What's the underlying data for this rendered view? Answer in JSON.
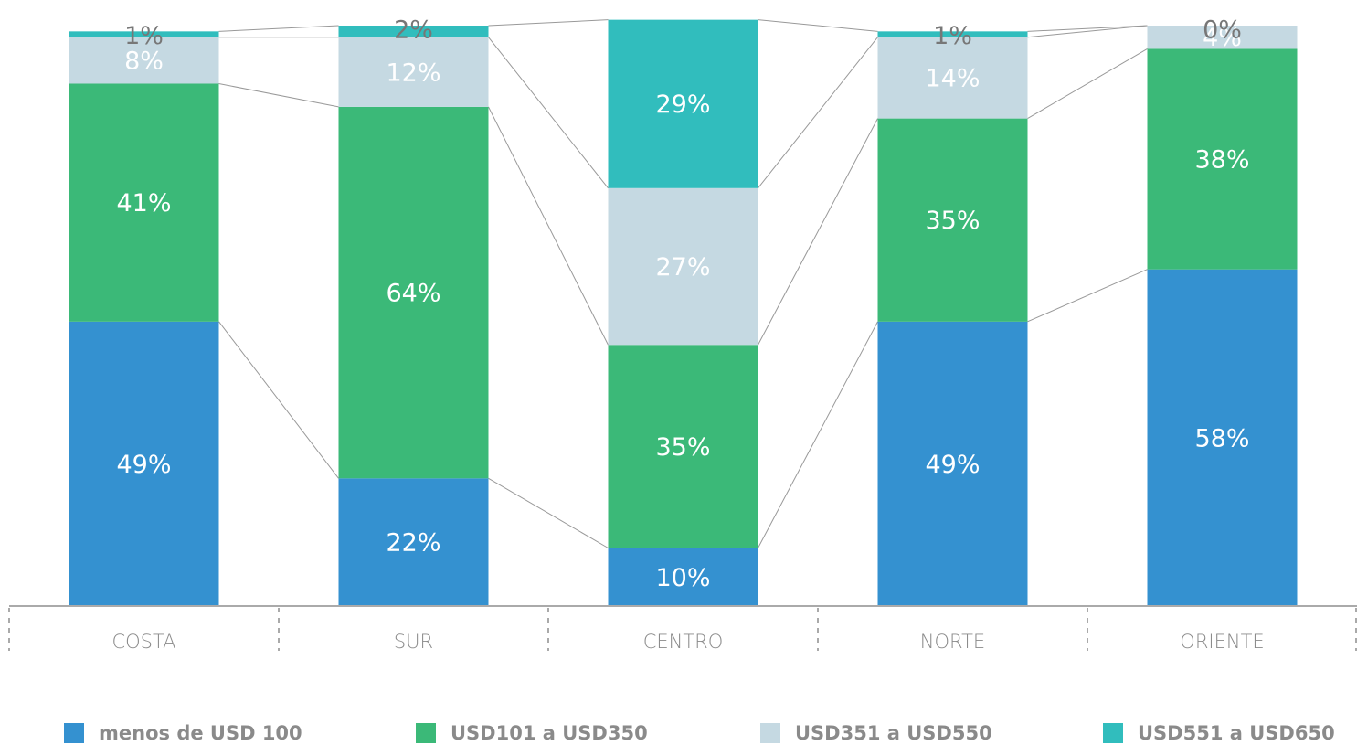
{
  "chart_data": {
    "type": "stacked_bar",
    "categories": [
      "COSTA",
      "SUR",
      "CENTRO",
      "NORTE",
      "ORIENTE"
    ],
    "ylim": [
      0,
      100
    ],
    "series": [
      {
        "name": "menos de USD 100",
        "color": "#3491d0",
        "values": [
          49,
          22,
          10,
          49,
          58
        ],
        "value_labels": [
          "49%",
          "22%",
          "10%",
          "49%",
          "58%"
        ]
      },
      {
        "name": "USD101 a USD350",
        "color": "#3bb978",
        "values": [
          41,
          64,
          35,
          35,
          38
        ],
        "value_labels": [
          "41%",
          "64%",
          "35%",
          "35%",
          "38%"
        ]
      },
      {
        "name": "USD351 a USD550",
        "color": "#c5d9e2",
        "values": [
          8,
          12,
          27,
          14,
          4
        ],
        "value_labels": [
          "8%",
          "12%",
          "27%",
          "14%",
          "4%"
        ]
      },
      {
        "name": "USD551 a USD650",
        "color": "#31bdbd",
        "values": [
          1,
          2,
          29,
          1,
          0
        ],
        "value_labels": [
          "1%",
          "2%",
          "29%",
          "1%",
          "0%"
        ]
      }
    ]
  }
}
